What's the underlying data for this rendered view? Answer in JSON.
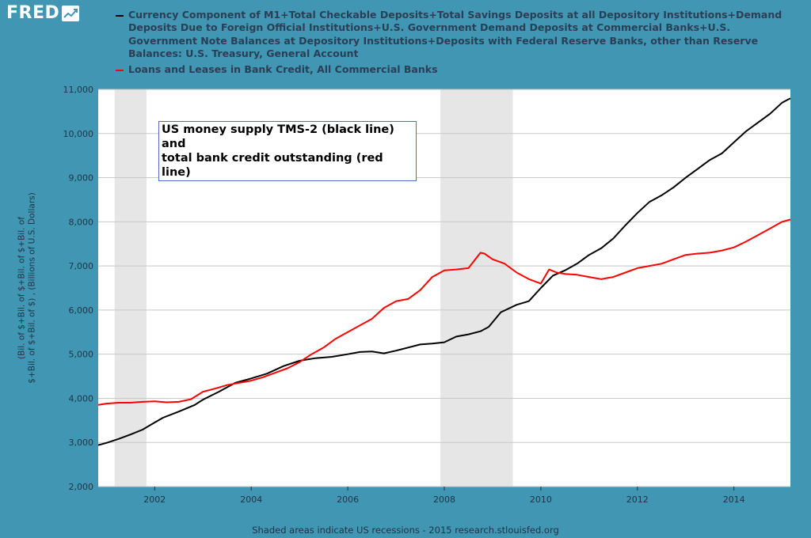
{
  "brand": {
    "logo_text": "FRED"
  },
  "colors": {
    "background": "#4197b3",
    "plot_background": "#ffffff",
    "recession_shade": "#e6e6e6",
    "gridline": "#c8c8c8",
    "axis_text": "#1e3344"
  },
  "footer": {
    "text": "Shaded areas indicate US recessions - 2015 research.stlouisfed.org"
  },
  "chart_data": {
    "type": "line",
    "title": "",
    "xlabel": "",
    "ylabel_line1": "(Bil. of $+Bil. of $+Bil. of $+Bil. of",
    "ylabel_line2": "$+Bil. of $+Bil. of $) , (Billions of U.S. Dollars)",
    "xlim": [
      2000.83,
      2015.17
    ],
    "ylim": [
      2000,
      11000
    ],
    "y_ticks": [
      2000,
      3000,
      4000,
      5000,
      6000,
      7000,
      8000,
      9000,
      10000,
      11000
    ],
    "y_tick_labels": [
      "2,000",
      "3,000",
      "4,000",
      "5,000",
      "6,000",
      "7,000",
      "8,000",
      "9,000",
      "10,000",
      "11,000"
    ],
    "x_ticks": [
      2002,
      2004,
      2006,
      2008,
      2010,
      2012,
      2014
    ],
    "x_tick_labels": [
      "2002",
      "2004",
      "2006",
      "2008",
      "2010",
      "2012",
      "2014"
    ],
    "grid": "horizontal",
    "legend_position": "top",
    "recessions": [
      [
        2001.17,
        2001.83
      ],
      [
        2007.92,
        2009.42
      ]
    ],
    "annotation": {
      "line1": "US money supply TMS-2 (black line) and",
      "line2": "total bank credit outstanding (red line)"
    },
    "series": [
      {
        "name": "Currency Component of M1+Total Checkable Deposits+Total Savings Deposits at all Depository Institutions+Demand Deposits Due to Foreign Official Institutions+U.S. Government Demand Deposits at Commercial Banks+U.S. Government Note Balances at Depository Institutions+Deposits with Federal Reserve Banks, other than Reserve Balances: U.S. Treasury, General Account",
        "color": "#000000",
        "x": [
          2000.83,
          2001.0,
          2001.25,
          2001.5,
          2001.75,
          2001.92,
          2002.17,
          2002.5,
          2002.83,
          2003.0,
          2003.33,
          2003.67,
          2004.0,
          2004.33,
          2004.67,
          2005.0,
          2005.33,
          2005.67,
          2006.0,
          2006.25,
          2006.5,
          2006.75,
          2007.0,
          2007.25,
          2007.5,
          2007.75,
          2008.0,
          2008.25,
          2008.5,
          2008.75,
          2008.92,
          2009.17,
          2009.5,
          2009.75,
          2010.0,
          2010.25,
          2010.5,
          2010.75,
          2011.0,
          2011.25,
          2011.5,
          2011.75,
          2012.0,
          2012.25,
          2012.5,
          2012.75,
          2013.0,
          2013.25,
          2013.5,
          2013.75,
          2014.0,
          2014.25,
          2014.5,
          2014.75,
          2015.0,
          2015.17
        ],
        "values": [
          2940,
          2990,
          3080,
          3180,
          3290,
          3400,
          3560,
          3700,
          3850,
          3970,
          4150,
          4350,
          4450,
          4560,
          4730,
          4850,
          4910,
          4940,
          5000,
          5050,
          5060,
          5020,
          5080,
          5150,
          5220,
          5240,
          5270,
          5400,
          5450,
          5520,
          5620,
          5950,
          6120,
          6200,
          6500,
          6780,
          6900,
          7050,
          7250,
          7400,
          7620,
          7920,
          8200,
          8450,
          8600,
          8780,
          9000,
          9200,
          9400,
          9550,
          9800,
          10050,
          10250,
          10450,
          10700,
          10800
        ]
      },
      {
        "name": "Loans and Leases in Bank Credit, All Commercial Banks",
        "color": "#ff0000",
        "x": [
          2000.83,
          2001.0,
          2001.25,
          2001.5,
          2001.75,
          2002.0,
          2002.25,
          2002.5,
          2002.75,
          2003.0,
          2003.25,
          2003.5,
          2003.75,
          2004.0,
          2004.25,
          2004.5,
          2004.75,
          2005.0,
          2005.25,
          2005.5,
          2005.75,
          2006.0,
          2006.25,
          2006.5,
          2006.75,
          2007.0,
          2007.25,
          2007.5,
          2007.75,
          2008.0,
          2008.25,
          2008.5,
          2008.75,
          2008.83,
          2009.0,
          2009.25,
          2009.5,
          2009.75,
          2010.0,
          2010.17,
          2010.33,
          2010.5,
          2010.75,
          2011.0,
          2011.25,
          2011.5,
          2011.75,
          2012.0,
          2012.25,
          2012.5,
          2012.75,
          2013.0,
          2013.25,
          2013.5,
          2013.75,
          2014.0,
          2014.25,
          2014.5,
          2014.75,
          2015.0,
          2015.17
        ],
        "values": [
          3850,
          3880,
          3900,
          3900,
          3920,
          3930,
          3910,
          3920,
          3980,
          4150,
          4220,
          4300,
          4350,
          4400,
          4480,
          4580,
          4680,
          4820,
          5000,
          5150,
          5350,
          5500,
          5650,
          5800,
          6050,
          6200,
          6250,
          6450,
          6750,
          6900,
          6920,
          6950,
          7300,
          7280,
          7150,
          7050,
          6850,
          6700,
          6600,
          6920,
          6850,
          6820,
          6800,
          6750,
          6700,
          6750,
          6850,
          6950,
          7000,
          7050,
          7150,
          7250,
          7280,
          7300,
          7350,
          7420,
          7550,
          7700,
          7850,
          8000,
          8050
        ]
      }
    ]
  }
}
